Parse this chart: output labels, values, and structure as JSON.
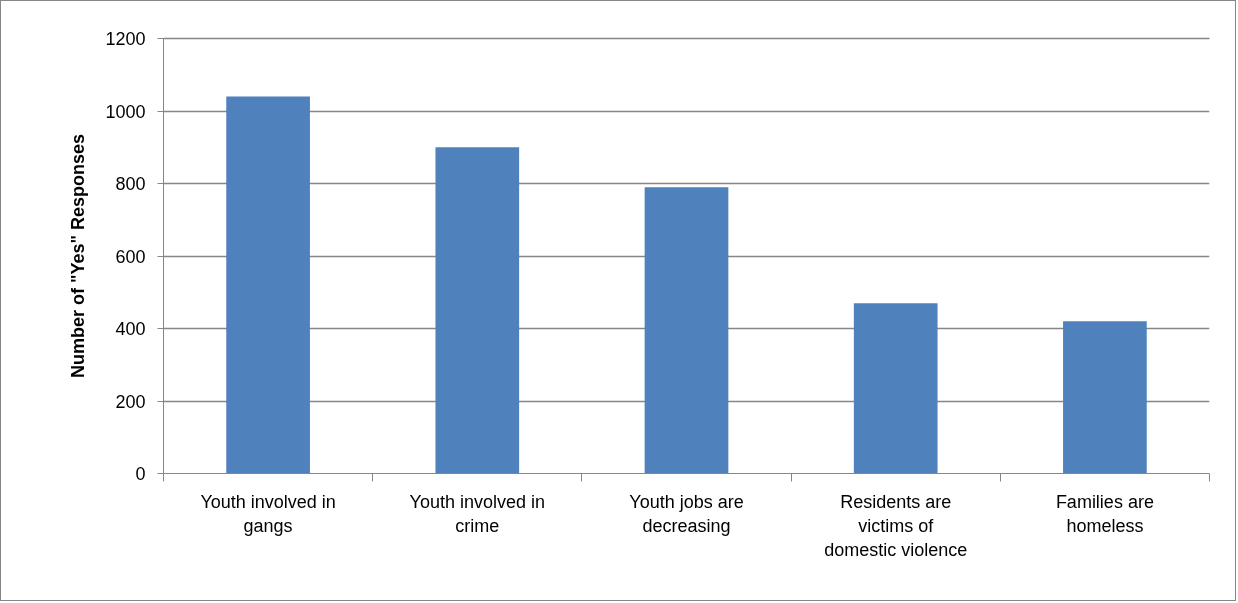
{
  "chart_data": {
    "type": "bar",
    "ylabel": "Number of \"Yes\" Responses",
    "categories": [
      "Youth involved in gangs",
      "Youth involved in crime",
      "Youth jobs are decreasing",
      "Residents are victims of domestic violence",
      "Families are homeless"
    ],
    "values": [
      1040,
      900,
      790,
      470,
      420
    ],
    "color": "#4f81bd",
    "ylim": [
      0,
      1200
    ],
    "yticks": [
      0,
      200,
      400,
      600,
      800,
      1000,
      1200
    ],
    "grid": "y"
  }
}
